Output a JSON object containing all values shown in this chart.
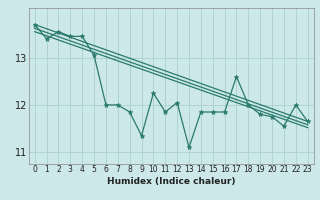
{
  "xlabel": "Humidex (Indice chaleur)",
  "background_color": "#cce8e8",
  "grid_color": "#aad0d0",
  "line_color": "#2a7a6e",
  "x_values": [
    0,
    1,
    2,
    3,
    4,
    5,
    6,
    7,
    8,
    9,
    10,
    11,
    12,
    13,
    14,
    15,
    16,
    17,
    18,
    19,
    20,
    21,
    22,
    23
  ],
  "series1": [
    13.7,
    13.4,
    13.55,
    13.45,
    13.45,
    13.05,
    12.0,
    12.0,
    11.85,
    11.35,
    12.25,
    11.85,
    12.05,
    11.1,
    11.85,
    11.85,
    11.85,
    12.6,
    12.0,
    11.8,
    11.75,
    11.55,
    12.0,
    11.65
  ],
  "reg_lines": [
    {
      "x0": 0,
      "y0": 13.7,
      "x1": 23,
      "y1": 11.65
    },
    {
      "x0": 0,
      "y0": 13.62,
      "x1": 23,
      "y1": 11.58
    },
    {
      "x0": 0,
      "y0": 13.55,
      "x1": 23,
      "y1": 11.52
    }
  ],
  "ylim_min": 10.75,
  "ylim_max": 14.05,
  "xlim_min": -0.5,
  "xlim_max": 23.5,
  "yticks": [
    11,
    12,
    13
  ],
  "xticks": [
    0,
    1,
    2,
    3,
    4,
    5,
    6,
    7,
    8,
    9,
    10,
    11,
    12,
    13,
    14,
    15,
    16,
    17,
    18,
    19,
    20,
    21,
    22,
    23
  ],
  "tick_fontsize": 5.5,
  "xlabel_fontsize": 6.5
}
